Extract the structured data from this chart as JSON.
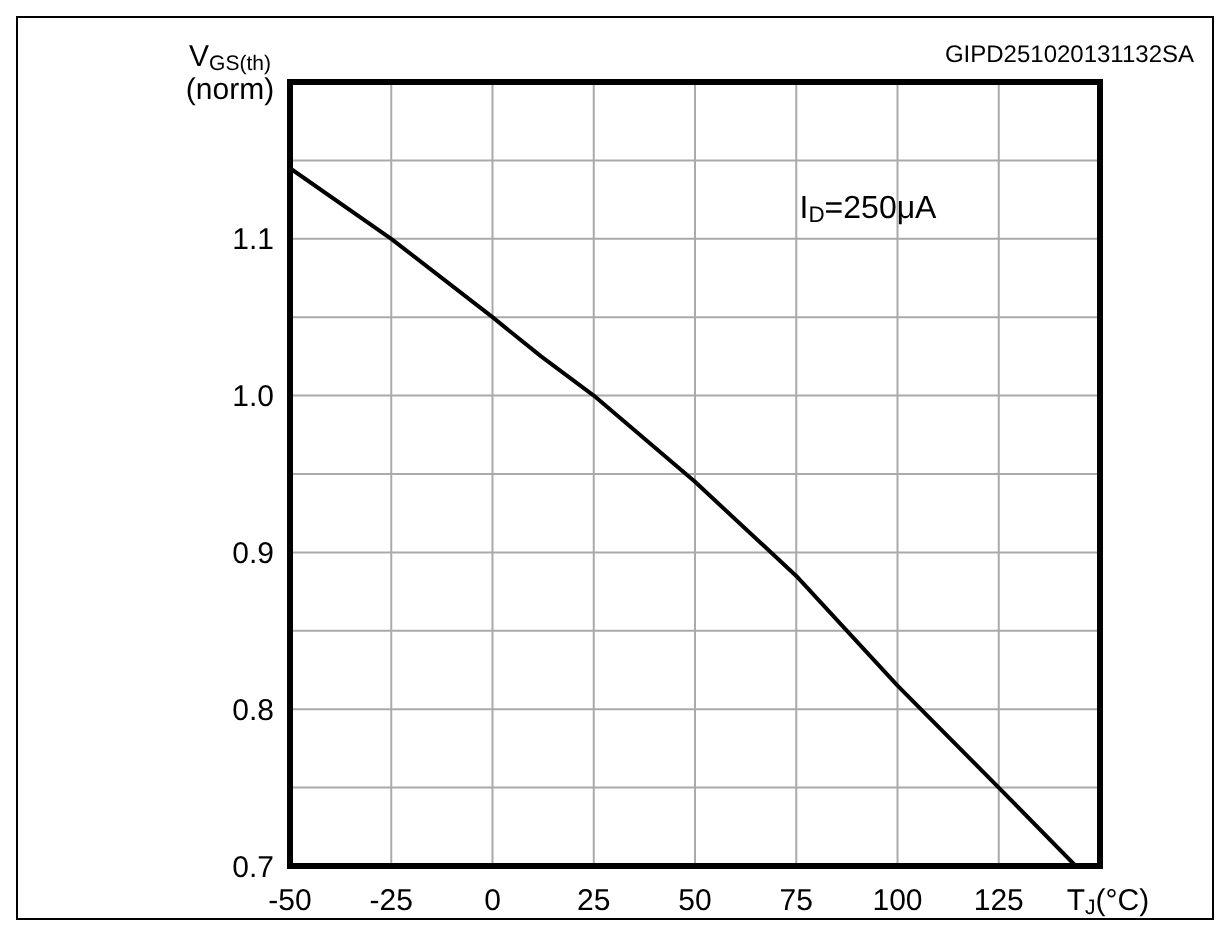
{
  "chart_data": {
    "type": "line",
    "ylabel": "V$_{GS(th)}$\n(norm)",
    "xlabel": "T$_{J}$(°C)",
    "annotations": [
      {
        "text": "I$_{D}$=250μA"
      },
      "GIPD251020131132SA"
    ],
    "x": [
      -50,
      -25,
      0,
      12,
      25,
      50,
      75,
      100,
      125,
      144
    ],
    "series": [
      {
        "color": "#000000",
        "values": [
          1.145,
          1.1,
          1.05,
          1.025,
          1.0,
          0.945,
          0.885,
          0.815,
          0.75,
          0.7
        ]
      }
    ],
    "xlim": [
      -50,
      150
    ],
    "xticks": [
      -50,
      -25,
      0,
      25,
      50,
      75,
      100,
      125,
      {
        "value": 150,
        "label": null
      }
    ],
    "ylim": [
      0.7,
      1.2
    ],
    "yticks": [
      0.7,
      {
        "value": 0.75,
        "label": null
      },
      0.8,
      {
        "value": 0.85,
        "label": null
      },
      0.9,
      {
        "value": 0.95,
        "label": null
      },
      {
        "value": 1.0,
        "label": "1.0"
      },
      {
        "value": 1.05,
        "label": null
      },
      1.1,
      {
        "value": 1.15,
        "label": null
      },
      {
        "value": 1.2,
        "label": null
      }
    ],
    "grid": true,
    "marker": "none",
    "line_style": "solid"
  }
}
